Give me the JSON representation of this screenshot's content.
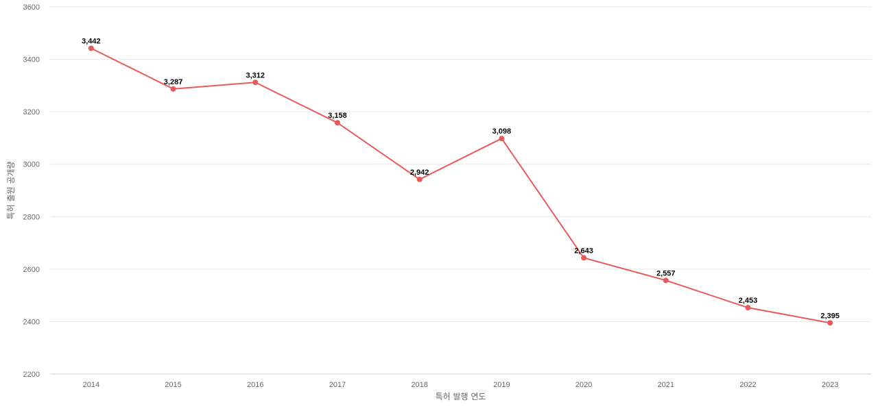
{
  "chart_data": {
    "type": "line",
    "title": "",
    "xlabel": "특허 발행 연도",
    "ylabel": "특허 출원 공개량",
    "categories": [
      "2014",
      "2015",
      "2016",
      "2017",
      "2018",
      "2019",
      "2020",
      "2021",
      "2022",
      "2023"
    ],
    "series": [
      {
        "values": [
          3442,
          3287,
          3312,
          3158,
          2942,
          3098,
          2643,
          2557,
          2453,
          2395
        ],
        "labels": [
          "3,442",
          "3,287",
          "3,312",
          "3,158",
          "2,942",
          "3,098",
          "2,643",
          "2,557",
          "2,453",
          "2,395"
        ],
        "color": "#e85a5a"
      }
    ],
    "ylim": [
      2200,
      3600
    ],
    "yticks": [
      2200,
      2400,
      2600,
      2800,
      3000,
      3200,
      3400,
      3600
    ],
    "grid": true,
    "legend": "none"
  }
}
